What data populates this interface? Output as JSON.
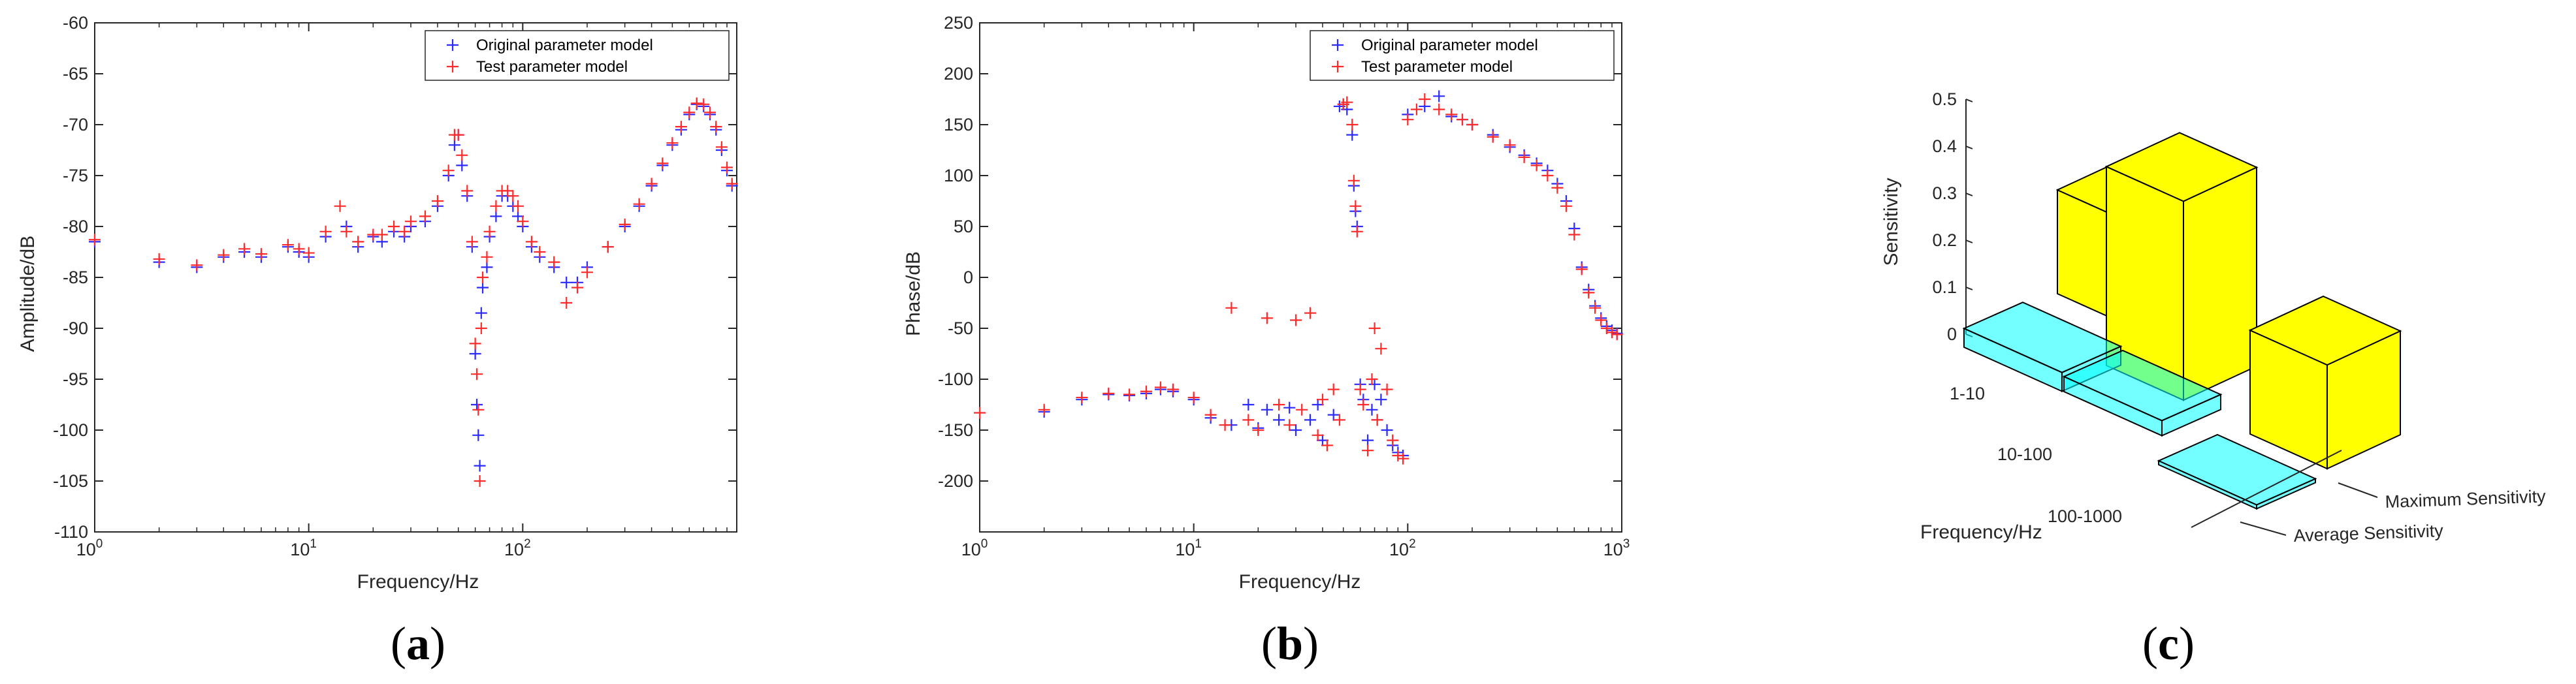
{
  "colors": {
    "original": "#2b2bff",
    "test": "#ff2b2b",
    "max_bar": "#ffff00",
    "avg_bar": "#00ffff",
    "axes": "#262626"
  },
  "labels": {
    "panel_a": "a",
    "panel_b": "b",
    "panel_c": "c"
  },
  "chart_data": [
    {
      "type": "scatter",
      "marker": "+",
      "xscale": "log",
      "xlim": [
        1,
        1000
      ],
      "ylim": [
        -110,
        -60
      ],
      "xlabel": "Frequency/Hz",
      "ylabel": "Amplitude/dB",
      "xticks": [
        1,
        10,
        100
      ],
      "xtick_labels": [
        "10",
        "10",
        "10"
      ],
      "xtick_exponents": [
        "0",
        "1",
        "2"
      ],
      "yticks": [
        -110,
        -105,
        -100,
        -95,
        -90,
        -85,
        -80,
        -75,
        -70,
        -65,
        -60
      ],
      "ytick_labels": [
        "-110",
        "-105",
        "-100",
        "-95",
        "-90",
        "-85",
        "-80",
        "-75",
        "-70",
        "-65",
        "-60"
      ],
      "legend": {
        "position": "top-right",
        "entries": [
          "Original parameter model",
          "Test parameter model"
        ]
      },
      "series": [
        {
          "name": "Original parameter model",
          "x": [
            1,
            2,
            3,
            4,
            5,
            6,
            8,
            9,
            10,
            12,
            15,
            17,
            20,
            22,
            25,
            28,
            30,
            35,
            40,
            45,
            48,
            50,
            52,
            55,
            58,
            60,
            61,
            62,
            63,
            64,
            65,
            68,
            70,
            75,
            80,
            85,
            90,
            95,
            100,
            110,
            120,
            140,
            160,
            180,
            200,
            250,
            300,
            350,
            400,
            450,
            500,
            550,
            600,
            650,
            700,
            750,
            800,
            850,
            900,
            950
          ],
          "y": [
            -81.5,
            -83.5,
            -84,
            -83,
            -82.5,
            -83,
            -82,
            -82.5,
            -83,
            -81,
            -80,
            -82,
            -81,
            -81.5,
            -80.5,
            -81,
            -80,
            -79.5,
            -78,
            -75,
            -72,
            -71,
            -74,
            -77,
            -82,
            -92.5,
            -97.5,
            -100.5,
            -103.5,
            -88.5,
            -86,
            -84,
            -81,
            -79,
            -77,
            -77,
            -78,
            -79,
            -80,
            -82,
            -83,
            -84,
            -85.5,
            -85.5,
            -84,
            -82,
            -80,
            -78,
            -76,
            -74,
            -72,
            -70.5,
            -69,
            -68,
            -68.2,
            -69,
            -70.5,
            -72.5,
            -74.5,
            -76
          ]
        },
        {
          "name": "Test parameter model",
          "x": [
            1,
            2,
            3,
            4,
            5,
            6,
            8,
            9,
            10,
            12,
            14,
            15,
            17,
            20,
            22,
            25,
            28,
            30,
            35,
            40,
            45,
            48,
            50,
            52,
            55,
            58,
            60,
            61,
            62,
            63,
            64,
            65,
            68,
            70,
            75,
            80,
            85,
            90,
            95,
            100,
            110,
            120,
            140,
            160,
            180,
            200,
            250,
            300,
            350,
            400,
            450,
            500,
            550,
            600,
            650,
            700,
            750,
            800,
            850,
            900,
            950
          ],
          "y": [
            -81.3,
            -83.2,
            -83.8,
            -82.8,
            -82.2,
            -82.7,
            -81.8,
            -82.2,
            -82.6,
            -80.5,
            -78,
            -80.5,
            -81.5,
            -80.8,
            -80.8,
            -80,
            -80.5,
            -79.5,
            -79,
            -77.5,
            -74.5,
            -71,
            -71,
            -73,
            -76.5,
            -81.5,
            -91.5,
            -94.5,
            -98,
            -105,
            -90,
            -85,
            -83,
            -80.5,
            -78,
            -76.5,
            -76.5,
            -77,
            -78,
            -79.5,
            -81.5,
            -82.5,
            -83.5,
            -87.5,
            -86,
            -84.5,
            -82,
            -79.8,
            -77.8,
            -75.8,
            -73.8,
            -71.8,
            -70.2,
            -68.8,
            -67.9,
            -68,
            -68.8,
            -70.2,
            -72.2,
            -74.2,
            -75.8
          ]
        }
      ]
    },
    {
      "type": "scatter",
      "marker": "+",
      "xscale": "log",
      "xlim": [
        1,
        1000
      ],
      "ylim": [
        -250,
        250
      ],
      "xlabel": "Frequency/Hz",
      "ylabel": "Phase/dB",
      "xticks": [
        1,
        10,
        100,
        1000
      ],
      "xtick_labels": [
        "10",
        "10",
        "10",
        "10"
      ],
      "xtick_exponents": [
        "0",
        "1",
        "2",
        "3"
      ],
      "yticks": [
        -200,
        -150,
        -100,
        -50,
        0,
        50,
        100,
        150,
        200,
        250
      ],
      "ytick_labels": [
        "-200",
        "-150",
        "-100",
        "-50",
        "0",
        "50",
        "100",
        "150",
        "200",
        "250"
      ],
      "legend": {
        "position": "top-right",
        "entries": [
          "Original parameter model",
          "Test parameter model"
        ]
      },
      "series": [
        {
          "name": "Original parameter model",
          "x": [
            2,
            3,
            4,
            5,
            6,
            7,
            8,
            10,
            12,
            15,
            18,
            20,
            22,
            25,
            28,
            30,
            35,
            38,
            40,
            45,
            48,
            50,
            52,
            55,
            56,
            57,
            58,
            60,
            62,
            65,
            68,
            70,
            72,
            75,
            80,
            85,
            90,
            95,
            100,
            120,
            140,
            160,
            180,
            200,
            250,
            300,
            350,
            400,
            450,
            500,
            550,
            600,
            650,
            700,
            750,
            800,
            850,
            900,
            950
          ],
          "y": [
            -132,
            -120,
            -115,
            -116,
            -114,
            -110,
            -112,
            -120,
            -138,
            -145,
            -125,
            -148,
            -130,
            -140,
            -128,
            -150,
            -140,
            -125,
            -160,
            -135,
            168,
            170,
            165,
            140,
            90,
            65,
            50,
            -105,
            -120,
            -160,
            -130,
            -105,
            -140,
            -120,
            -150,
            -165,
            -172,
            -175,
            160,
            168,
            178,
            158,
            155,
            150,
            140,
            128,
            120,
            112,
            105,
            92,
            75,
            48,
            10,
            -12,
            -28,
            -40,
            -48,
            -52,
            -55
          ]
        },
        {
          "name": "Test parameter model",
          "x": [
            1,
            2,
            3,
            4,
            5,
            6,
            7,
            8,
            10,
            12,
            14,
            15,
            18,
            20,
            22,
            25,
            28,
            30,
            32,
            35,
            38,
            40,
            42,
            45,
            48,
            50,
            52,
            55,
            56,
            57,
            58,
            60,
            62,
            65,
            68,
            70,
            72,
            75,
            80,
            85,
            90,
            95,
            100,
            110,
            120,
            140,
            160,
            180,
            200,
            250,
            300,
            350,
            400,
            450,
            500,
            550,
            600,
            650,
            700,
            750,
            800,
            850,
            900,
            950
          ],
          "y": [
            -133,
            -130,
            -118,
            -114,
            -115,
            -112,
            -108,
            -110,
            -118,
            -135,
            -145,
            -30,
            -140,
            -150,
            -40,
            -125,
            -145,
            -42,
            -130,
            -35,
            -155,
            -120,
            -165,
            -110,
            -140,
            170,
            172,
            150,
            95,
            70,
            45,
            -110,
            -125,
            -170,
            -100,
            -50,
            -140,
            -70,
            -110,
            -160,
            -175,
            -178,
            155,
            165,
            175,
            165,
            160,
            155,
            150,
            138,
            130,
            118,
            110,
            100,
            88,
            70,
            42,
            8,
            -15,
            -30,
            -42,
            -50,
            -54,
            -56
          ]
        }
      ]
    },
    {
      "type": "bar3d",
      "ylabel": "Sensitivity",
      "xlabel": "Frequency/Hz",
      "categories": [
        "1-10",
        "10-100",
        "100-1000"
      ],
      "series_labels": [
        "Average Sensitivity",
        "Maximum Sensitivity"
      ],
      "zlim": [
        0,
        0.5
      ],
      "zticks": [
        0,
        0.1,
        0.2,
        0.3,
        0.4,
        0.5
      ],
      "ztick_labels": [
        "0",
        "0.1",
        "0.2",
        "0.3",
        "0.4",
        "0.5"
      ],
      "series": [
        {
          "name": "Average Sensitivity",
          "values": [
            0.05,
            0.04,
            0.01
          ]
        },
        {
          "name": "Maximum Sensitivity",
          "values": [
            0.24,
            0.46,
            0.24
          ]
        }
      ]
    }
  ]
}
